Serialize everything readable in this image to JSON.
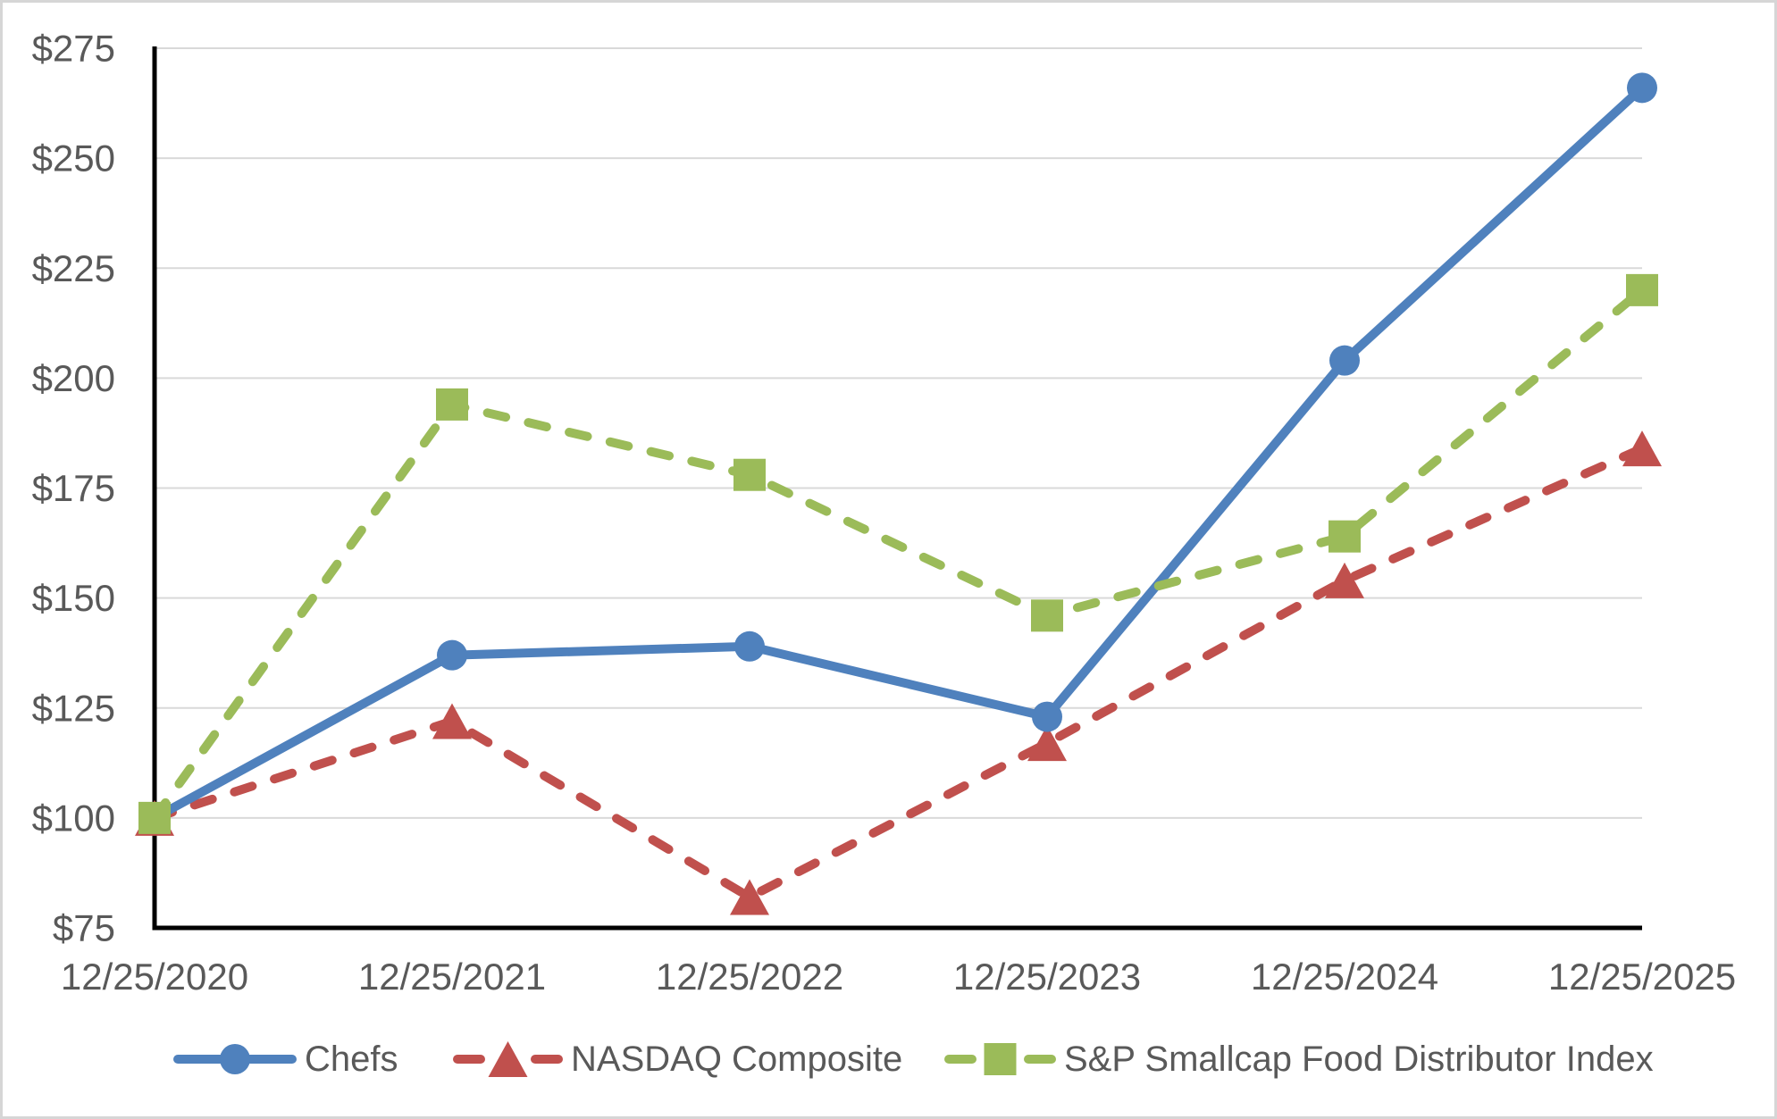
{
  "chart_data": {
    "type": "line",
    "title": "",
    "xlabel": "",
    "ylabel": "",
    "x_categories": [
      "12/25/2020",
      "12/25/2021",
      "12/25/2022",
      "12/25/2023",
      "12/25/2024",
      "12/25/2025"
    ],
    "y_ticks": [
      "$275",
      "$250",
      "$225",
      "$200",
      "$175",
      "$150",
      "$125",
      "$100",
      "$75"
    ],
    "y_tick_values": [
      275,
      250,
      225,
      200,
      175,
      150,
      125,
      100,
      75
    ],
    "ylim": [
      75,
      275
    ],
    "grid": true,
    "legend_position": "bottom",
    "series": [
      {
        "name": "Chefs",
        "color": "#4F81BD",
        "marker": "circle",
        "line_style": "solid",
        "values": [
          100,
          137,
          139,
          123,
          204,
          266
        ]
      },
      {
        "name": "NASDAQ Composite",
        "color": "#C0504D",
        "marker": "triangle",
        "line_style": "dashed",
        "values": [
          100,
          122,
          82,
          117,
          154,
          184
        ]
      },
      {
        "name": "S&P Smallcap Food Distributor Index",
        "color": "#9BBB59",
        "marker": "square",
        "line_style": "dashed",
        "values": [
          100,
          194,
          178,
          146,
          164,
          220
        ]
      }
    ]
  },
  "colors": {
    "axis": "#000000",
    "grid": "#D9D9D9",
    "text": "#595959",
    "background": "#FFFFFF"
  }
}
